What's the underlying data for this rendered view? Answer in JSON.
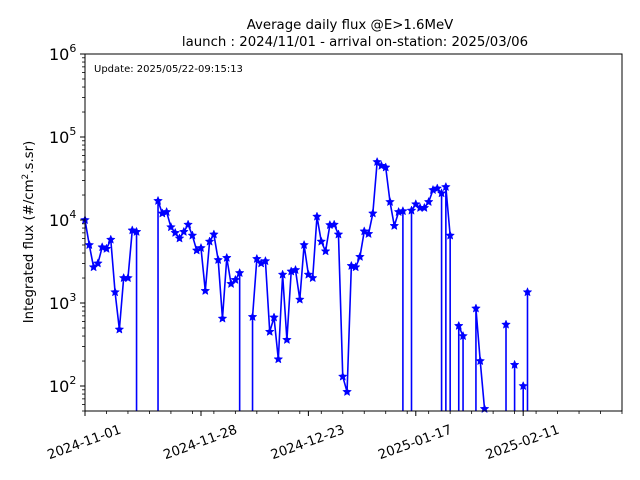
{
  "chart_data": {
    "type": "line",
    "title": "Average daily flux @E>1.6MeV",
    "subtitle": "launch : 2024/11/01 - arrival on-station: 2025/03/06",
    "ylabel_main": "Integrated flux (#/cm",
    "ylabel_sup": "2",
    "ylabel_rest": ".s.sr)",
    "annotation": "Update: 2025/05/22-09:15:13",
    "y_scale": "log",
    "ylim": [
      50,
      1000000
    ],
    "xlim": [
      "2024-11-01",
      "2025-03-06"
    ],
    "x_ticks": [
      "2024-11-01",
      "2024-11-28",
      "2024-12-23",
      "2025-01-17",
      "2025-02-11"
    ],
    "y_ticks": [
      {
        "value": 100,
        "base": "10",
        "exp": "2"
      },
      {
        "value": 1000,
        "base": "10",
        "exp": "3"
      },
      {
        "value": 10000,
        "base": "10",
        "exp": "4"
      },
      {
        "value": 100000,
        "base": "10",
        "exp": "5"
      },
      {
        "value": 1000000,
        "base": "10",
        "exp": "6"
      }
    ],
    "color": "#0000ff",
    "marker": "star",
    "series": [
      {
        "points": [
          [
            "2024-11-01",
            10000
          ],
          [
            "2024-11-02",
            5000
          ],
          [
            "2024-11-03",
            2700
          ],
          [
            "2024-11-04",
            3000
          ],
          [
            "2024-11-05",
            4700
          ],
          [
            "2024-11-06",
            4500
          ],
          [
            "2024-11-07",
            5800
          ],
          [
            "2024-11-08",
            1350
          ],
          [
            "2024-11-09",
            480
          ],
          [
            "2024-11-10",
            2000
          ],
          [
            "2024-11-11",
            2000
          ],
          [
            "2024-11-12",
            7500
          ],
          [
            "2024-11-13",
            7200
          ],
          [
            "2024-11-13",
            50
          ]
        ]
      },
      {
        "points": [
          [
            "2024-11-18",
            50
          ],
          [
            "2024-11-18",
            17000
          ],
          [
            "2024-11-19",
            12000
          ],
          [
            "2024-11-20",
            12500
          ],
          [
            "2024-11-21",
            8200
          ],
          [
            "2024-11-22",
            7000
          ],
          [
            "2024-11-23",
            6000
          ],
          [
            "2024-11-24",
            7200
          ],
          [
            "2024-11-25",
            8800
          ],
          [
            "2024-11-26",
            6500
          ],
          [
            "2024-11-27",
            4300
          ],
          [
            "2024-11-28",
            4600
          ],
          [
            "2024-11-29",
            1400
          ],
          [
            "2024-11-30",
            5500
          ],
          [
            "2024-12-01",
            6700
          ],
          [
            "2024-12-02",
            3300
          ],
          [
            "2024-12-03",
            650
          ],
          [
            "2024-12-04",
            3500
          ],
          [
            "2024-12-05",
            1700
          ],
          [
            "2024-12-06",
            1900
          ],
          [
            "2024-12-07",
            2300
          ],
          [
            "2024-12-07",
            50
          ]
        ]
      },
      {
        "points": [
          [
            "2024-12-10",
            50
          ],
          [
            "2024-12-10",
            680
          ],
          [
            "2024-12-11",
            3400
          ],
          [
            "2024-12-12",
            3000
          ],
          [
            "2024-12-13",
            3200
          ],
          [
            "2024-12-14",
            450
          ],
          [
            "2024-12-15",
            670
          ],
          [
            "2024-12-16",
            210
          ],
          [
            "2024-12-17",
            2200
          ],
          [
            "2024-12-18",
            360
          ],
          [
            "2024-12-19",
            2400
          ],
          [
            "2024-12-20",
            2500
          ],
          [
            "2024-12-21",
            1100
          ],
          [
            "2024-12-22",
            5000
          ],
          [
            "2024-12-23",
            2200
          ],
          [
            "2024-12-24",
            2000
          ],
          [
            "2024-12-25",
            11000
          ],
          [
            "2024-12-26",
            5500
          ],
          [
            "2024-12-27",
            4200
          ],
          [
            "2024-12-28",
            8700
          ],
          [
            "2024-12-29",
            8800
          ],
          [
            "2024-12-30",
            6700
          ],
          [
            "2024-12-31",
            130
          ],
          [
            "2025-01-01",
            85
          ],
          [
            "2025-01-02",
            2800
          ],
          [
            "2025-01-03",
            2700
          ],
          [
            "2025-01-04",
            3600
          ],
          [
            "2025-01-05",
            7300
          ],
          [
            "2025-01-06",
            6800
          ],
          [
            "2025-01-07",
            12000
          ],
          [
            "2025-01-08",
            50000
          ],
          [
            "2025-01-09",
            45000
          ],
          [
            "2025-01-10",
            43000
          ],
          [
            "2025-01-11",
            16500
          ],
          [
            "2025-01-12",
            8500
          ],
          [
            "2025-01-13",
            12500
          ],
          [
            "2025-01-14",
            12800
          ],
          [
            "2025-01-14",
            50
          ]
        ]
      },
      {
        "points": [
          [
            "2025-01-16",
            50
          ],
          [
            "2025-01-16",
            13000
          ],
          [
            "2025-01-17",
            15500
          ],
          [
            "2025-01-18",
            14000
          ],
          [
            "2025-01-19",
            14000
          ],
          [
            "2025-01-20",
            16500
          ],
          [
            "2025-01-21",
            23000
          ],
          [
            "2025-01-22",
            24000
          ],
          [
            "2025-01-23",
            21000
          ],
          [
            "2025-01-23",
            50
          ]
        ]
      },
      {
        "points": [
          [
            "2025-01-24",
            50
          ],
          [
            "2025-01-24",
            25000
          ],
          [
            "2025-01-25",
            6500
          ],
          [
            "2025-01-25",
            50
          ]
        ]
      },
      {
        "points": [
          [
            "2025-01-27",
            50
          ],
          [
            "2025-01-27",
            530
          ],
          [
            "2025-01-28",
            400
          ],
          [
            "2025-01-28",
            50
          ]
        ]
      },
      {
        "points": [
          [
            "2025-01-31",
            50
          ],
          [
            "2025-01-31",
            860
          ],
          [
            "2025-02-01",
            200
          ],
          [
            "2025-02-02",
            53
          ]
        ]
      },
      {
        "points": [
          [
            "2025-02-07",
            50
          ],
          [
            "2025-02-07",
            550
          ],
          [
            "2025-02-07",
            50
          ]
        ]
      },
      {
        "points": [
          [
            "2025-02-09",
            50
          ],
          [
            "2025-02-09",
            180
          ],
          [
            "2025-02-09",
            50
          ]
        ]
      },
      {
        "points": [
          [
            "2025-02-11",
            50
          ],
          [
            "2025-02-11",
            100
          ],
          [
            "2025-02-11",
            50
          ]
        ]
      },
      {
        "points": [
          [
            "2025-02-12",
            50
          ],
          [
            "2025-02-12",
            1350
          ],
          [
            "2025-02-12",
            50
          ]
        ]
      }
    ]
  }
}
